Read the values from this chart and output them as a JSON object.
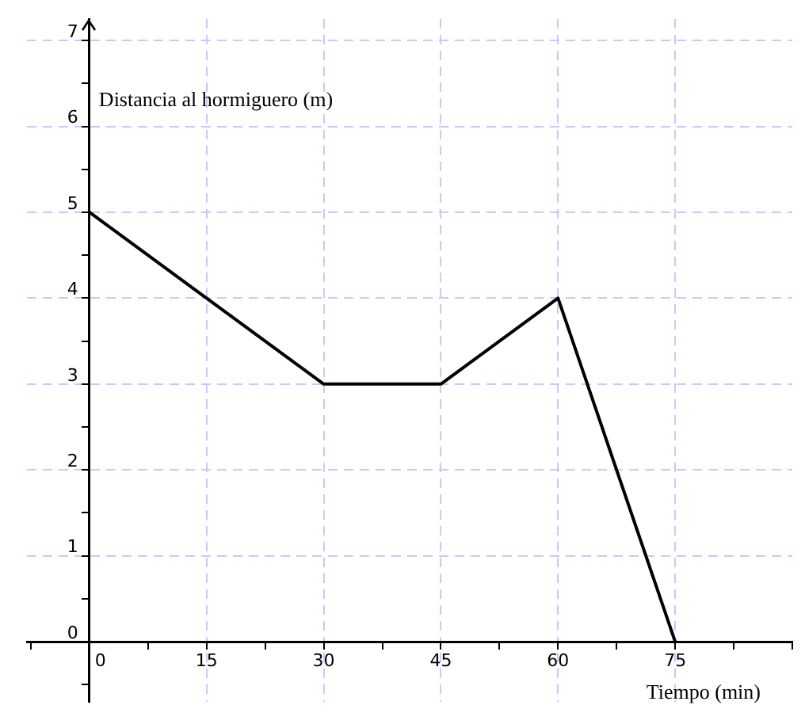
{
  "chart_data": {
    "type": "line",
    "xlabel": "Tiempo (min)",
    "ylabel": "Distancia al hormiguero (m)",
    "x": [
      0,
      30,
      45,
      60,
      75
    ],
    "values": [
      5,
      3,
      3,
      4,
      0
    ],
    "color": "#000000",
    "xlim": [
      -8,
      90
    ],
    "xticks": [
      {
        "value": -7.5,
        "label": null
      },
      0,
      {
        "value": 7.5,
        "label": null
      },
      15,
      {
        "value": 22.5,
        "label": null
      },
      30,
      {
        "value": 37.5,
        "label": null
      },
      45,
      {
        "value": 52.5,
        "label": null
      },
      60,
      {
        "value": 67.5,
        "label": null
      },
      75,
      {
        "value": 82.5,
        "label": null
      },
      {
        "value": 90,
        "label": null
      }
    ],
    "ylim": [
      -0.7,
      7.25
    ],
    "yticks": [
      {
        "value": -0.5,
        "label": null
      },
      0,
      {
        "value": 0.5,
        "label": null
      },
      1,
      {
        "value": 1.5,
        "label": null
      },
      2,
      {
        "value": 2.5,
        "label": null
      },
      3,
      {
        "value": 3.5,
        "label": null
      },
      4,
      {
        "value": 4.5,
        "label": null
      },
      5,
      {
        "value": 5.5,
        "label": null
      },
      6,
      {
        "value": 6.5,
        "label": null
      },
      7
    ],
    "grid": true,
    "legend": false,
    "marker": "none",
    "line_style": "solid"
  }
}
